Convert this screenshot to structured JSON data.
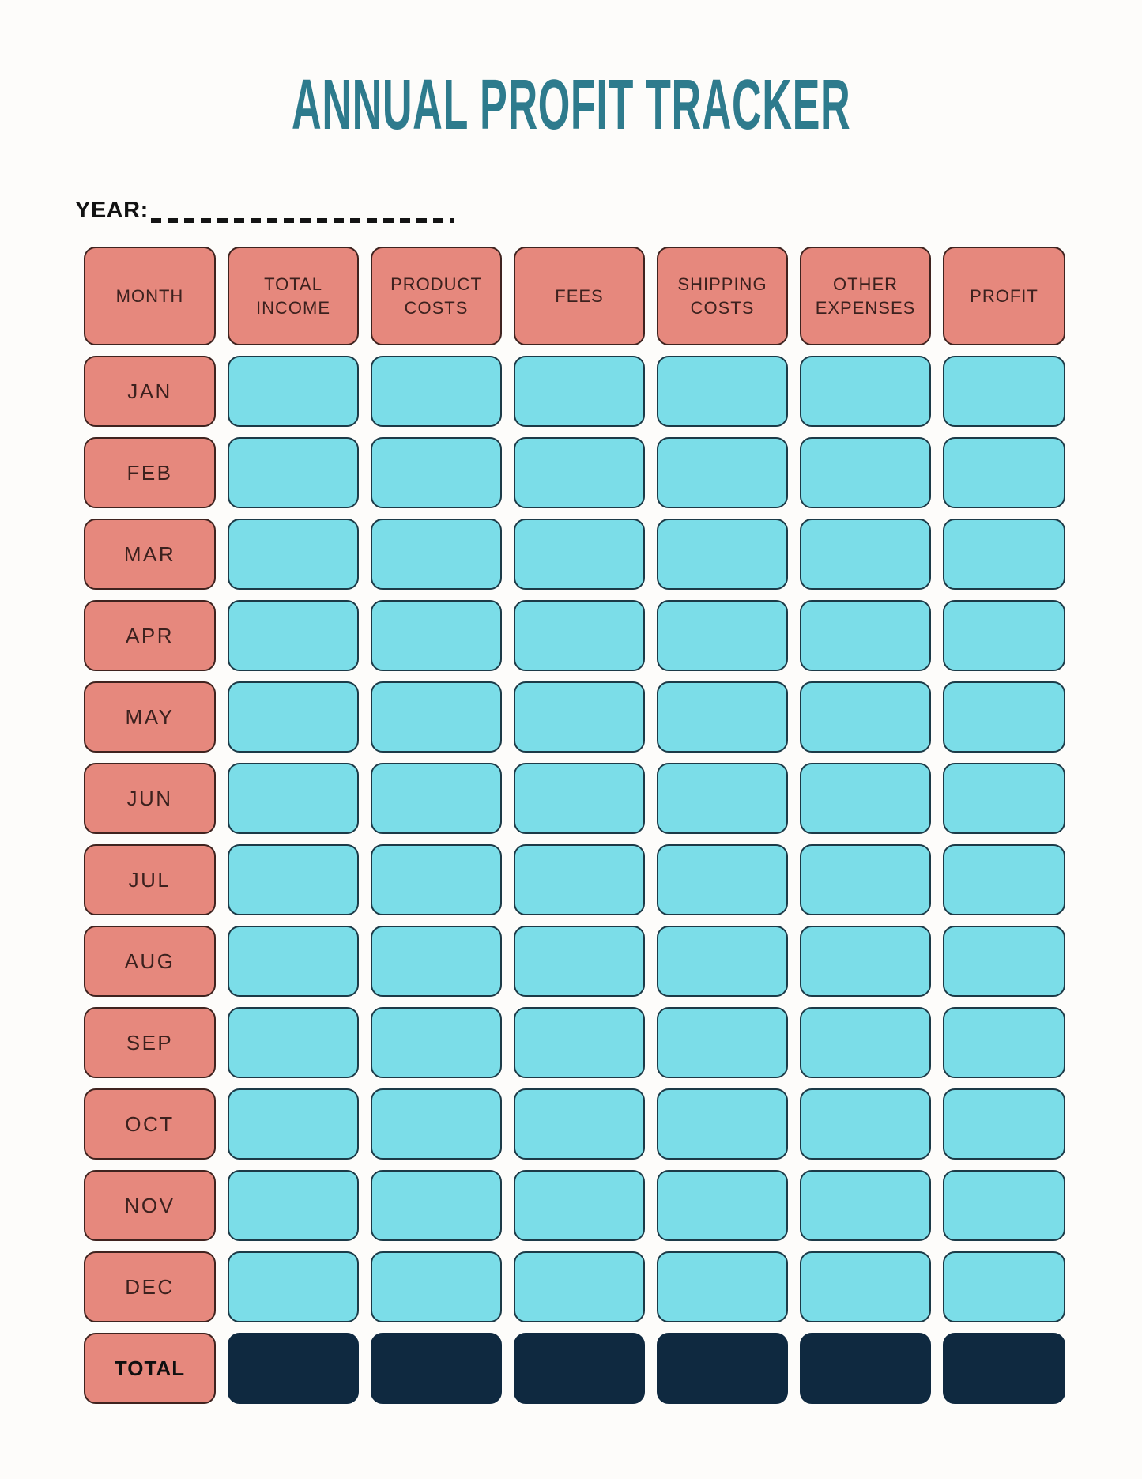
{
  "title": {
    "text": "ANNUAL PROFIT TRACKER"
  },
  "year": {
    "label": "YEAR:",
    "value": ""
  },
  "table": {
    "headers": [
      "MONTH",
      "TOTAL INCOME",
      "PRODUCT COSTS",
      "FEES",
      "SHIPPING COSTS",
      "OTHER EXPENSES",
      "PROFIT"
    ],
    "months": [
      "JAN",
      "FEB",
      "MAR",
      "APR",
      "MAY",
      "JUN",
      "JUL",
      "AUG",
      "SEP",
      "OCT",
      "NOV",
      "DEC"
    ],
    "total_label": "TOTAL",
    "data_cell_value": ""
  },
  "colors": {
    "title_teal": "#2E7B8D",
    "header_fill": "#E6887D",
    "header_border": "#3F231F",
    "data_fill": "#7BDDE8",
    "data_border": "#1C3A47",
    "total_fill": "#0F2940",
    "label_text": "#3C211E",
    "background": "#FDFCFA"
  }
}
